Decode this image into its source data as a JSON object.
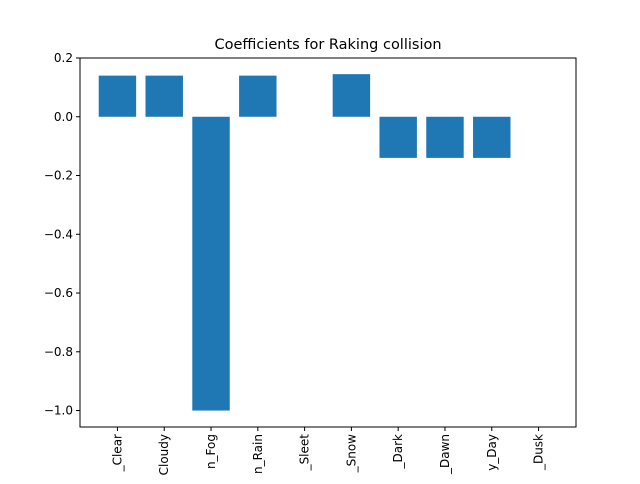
{
  "chart_data": {
    "type": "bar",
    "title": "Coefficients for Raking collision",
    "xlabel": "",
    "ylabel": "",
    "categories": [
      "_Clear",
      "Cloudy",
      "n_Fog",
      "n_Rain",
      "_Sleet",
      "_Snow",
      "_Dark",
      "_Dawn",
      "y_Day",
      "_Dusk"
    ],
    "values": [
      0.14,
      0.14,
      -1.0,
      0.14,
      0.0,
      0.145,
      -0.14,
      -0.14,
      -0.14,
      0.0
    ],
    "ylim": [
      -1.056,
      0.2
    ],
    "yticks": [
      0.2,
      0.0,
      -0.2,
      -0.4,
      -0.6,
      -0.8,
      -1.0
    ],
    "ytick_labels": [
      "0.2",
      "0.0",
      "−0.2",
      "−0.4",
      "−0.6",
      "−0.8",
      "−1.0"
    ],
    "grid": false,
    "legend": "none",
    "bar_color": "#1f77b4"
  }
}
